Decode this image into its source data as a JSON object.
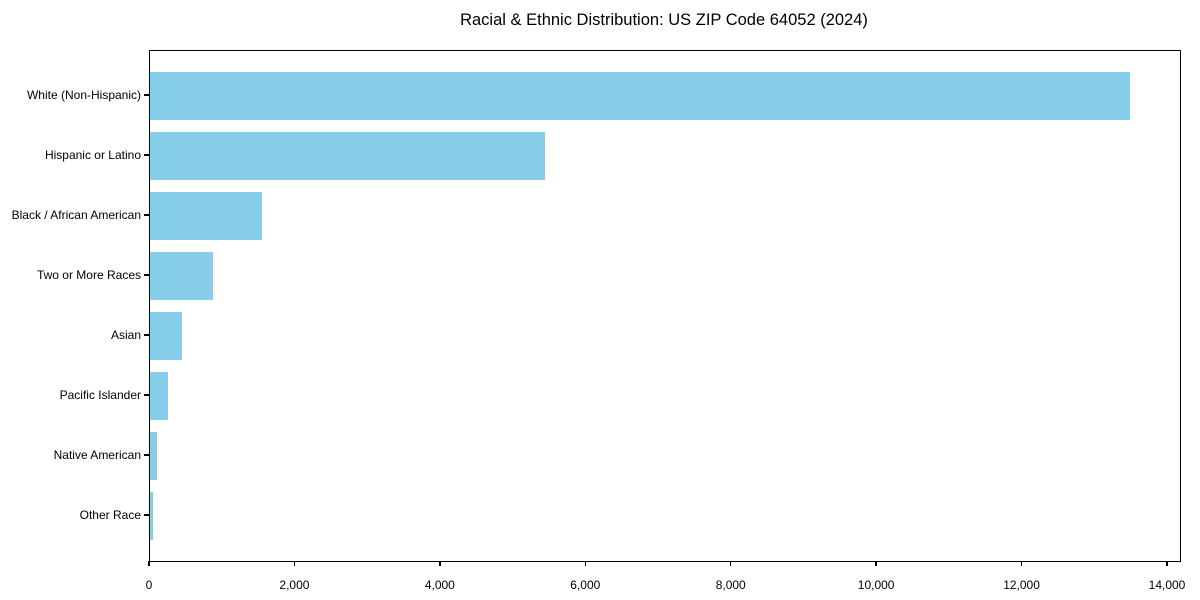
{
  "chart_data": {
    "type": "bar",
    "orientation": "horizontal",
    "title": "Racial & Ethnic Distribution: US ZIP Code 64052 (2024)",
    "categories": [
      "White (Non-Hispanic)",
      "Hispanic or Latino",
      "Black / African American",
      "Two or More Races",
      "Asian",
      "Pacific Islander",
      "Native American",
      "Other Race"
    ],
    "values": [
      13480,
      5435,
      1540,
      860,
      435,
      245,
      90,
      40
    ],
    "xlabel": "",
    "ylabel": "",
    "xlim": [
      0,
      14165
    ],
    "xticks": [
      0,
      2000,
      4000,
      6000,
      8000,
      10000,
      12000,
      14000
    ],
    "xtick_labels": [
      "0",
      "2,000",
      "4,000",
      "6,000",
      "8,000",
      "10,000",
      "12,000",
      "14,000"
    ],
    "bar_color": "#87CEEB",
    "axis_color": "#000000",
    "grid": false,
    "legend": "none"
  }
}
